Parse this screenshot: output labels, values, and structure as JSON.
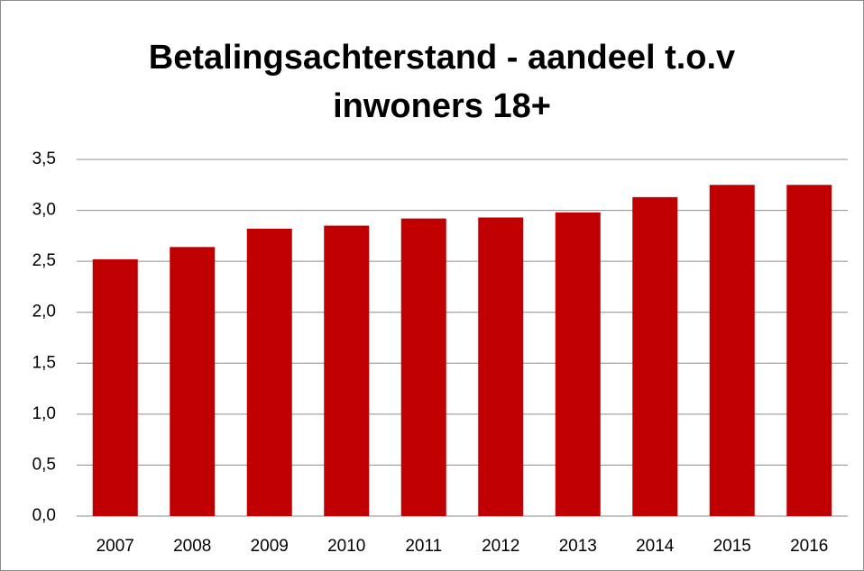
{
  "chart_data": {
    "type": "bar",
    "title": [
      "Betalingsachterstand - aandeel t.o.v",
      "inwoners 18+"
    ],
    "categories": [
      "2007",
      "2008",
      "2009",
      "2010",
      "2011",
      "2012",
      "2013",
      "2014",
      "2015",
      "2016"
    ],
    "values": [
      2.52,
      2.64,
      2.82,
      2.85,
      2.92,
      2.93,
      2.98,
      3.13,
      3.25,
      3.25
    ],
    "color": "#c00000",
    "ylim": [
      0,
      3.5
    ],
    "yticks": [
      {
        "value": 0,
        "label": "0,0"
      },
      {
        "value": 0.5,
        "label": "0,5"
      },
      {
        "value": 1,
        "label": "1,0"
      },
      {
        "value": 1.5,
        "label": "1,5"
      },
      {
        "value": 2,
        "label": "2,0"
      },
      {
        "value": 2.5,
        "label": "2,5"
      },
      {
        "value": 3,
        "label": "3,0"
      },
      {
        "value": 3.5,
        "label": "3,5"
      }
    ],
    "grid": true
  }
}
